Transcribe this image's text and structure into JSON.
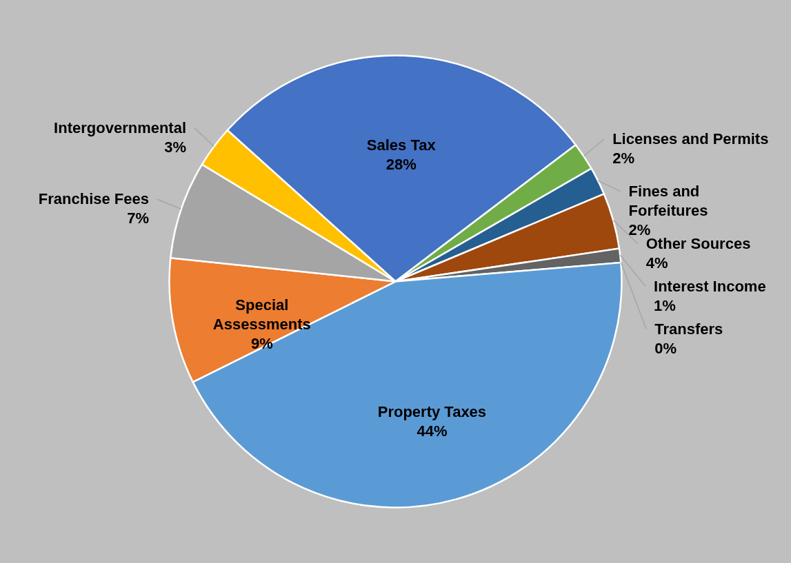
{
  "chart_data": {
    "type": "pie",
    "categories": [
      "Sales Tax",
      "Licenses and Permits",
      "Fines and Forfeitures",
      "Other Sources",
      "Interest Income",
      "Transfers",
      "Property Taxes",
      "Special Assessments",
      "Franchise Fees",
      "Intergovernmental"
    ],
    "values": [
      28,
      2,
      2,
      4,
      1,
      0,
      44,
      9,
      7,
      3
    ],
    "colors": [
      "#4472c4",
      "#70ad47",
      "#255e91",
      "#9e480e",
      "#636363",
      "#997300",
      "#5b9bd5",
      "#ed7d31",
      "#a5a5a5",
      "#ffc000"
    ],
    "value_labels": [
      "28%",
      "2%",
      "2%",
      "4%",
      "1%",
      "0%",
      "44%",
      "9%",
      "7%",
      "3%"
    ]
  }
}
